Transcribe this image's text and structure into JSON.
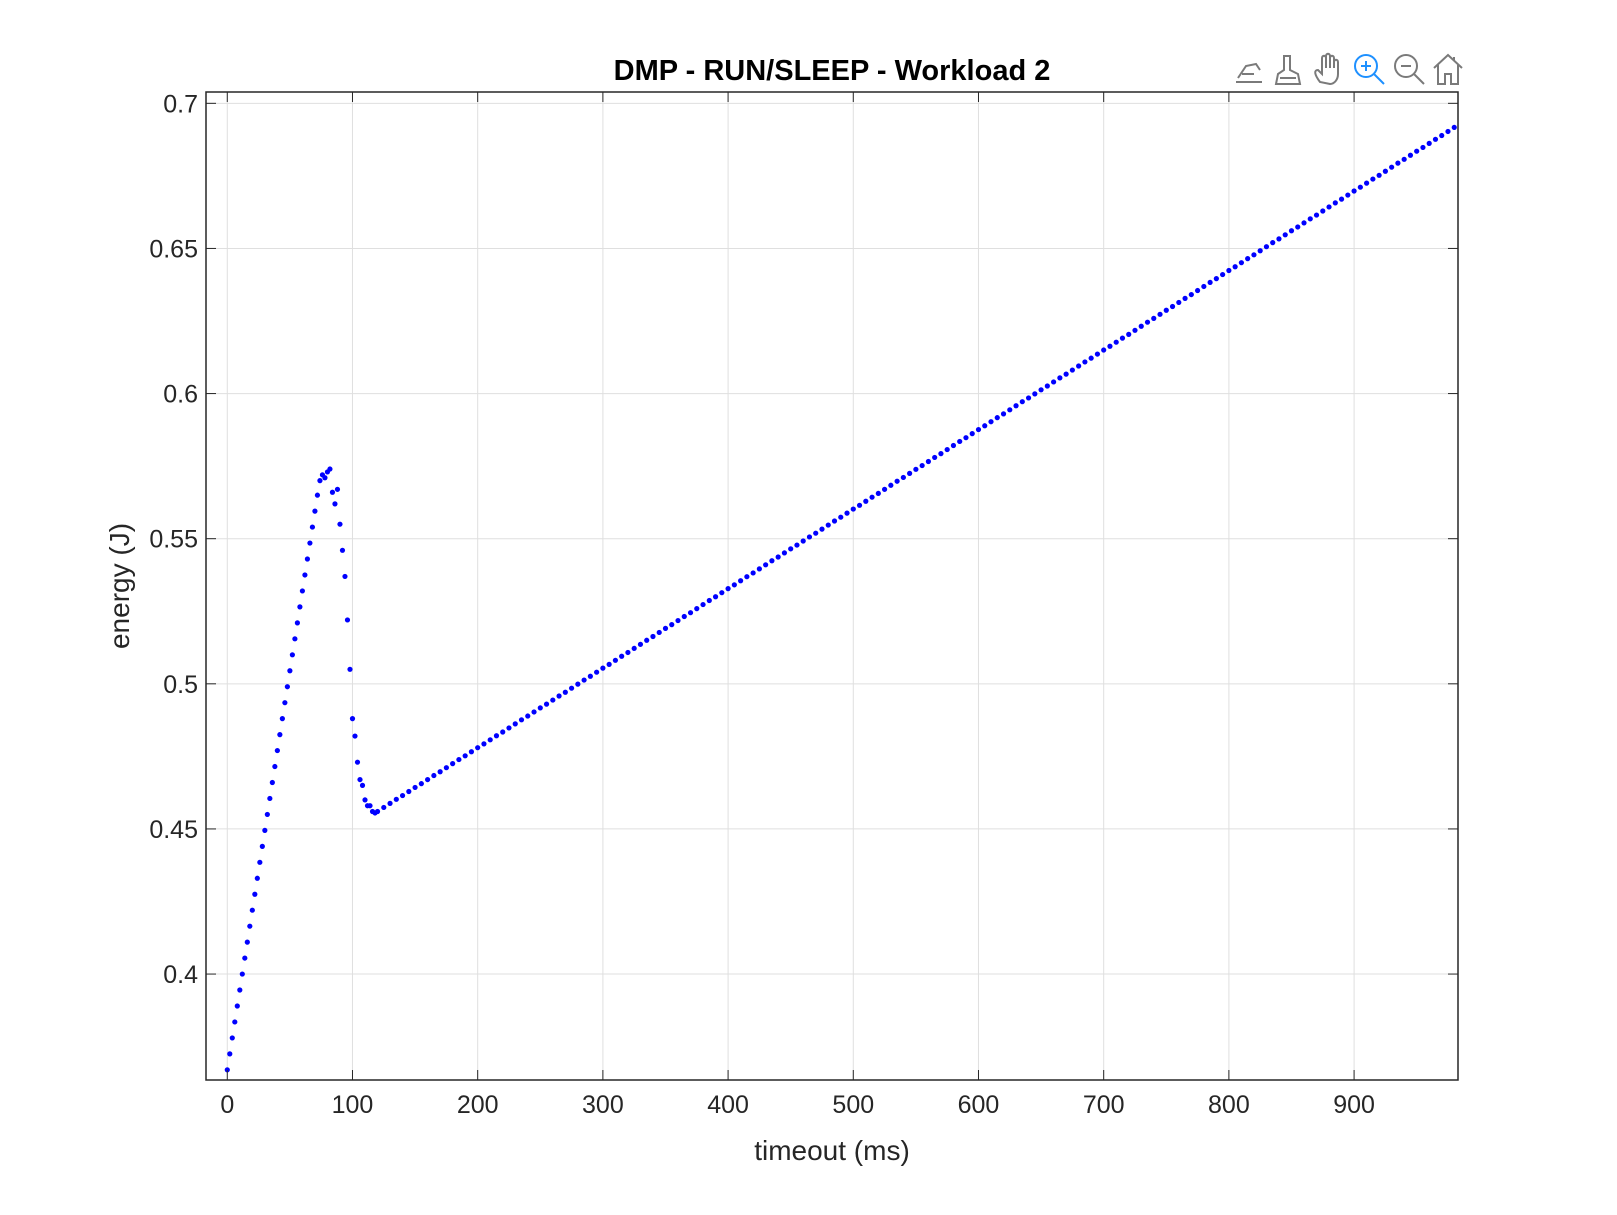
{
  "chart_data": {
    "type": "scatter",
    "title": "DMP - RUN/SLEEP - Workload 2",
    "x_label": "timeout (ms)",
    "y_label": "energy (J)",
    "xlim": [
      -17,
      983
    ],
    "ylim": [
      0.3635,
      0.7039
    ],
    "xticks": [
      0,
      100,
      200,
      300,
      400,
      500,
      600,
      700,
      800,
      900
    ],
    "yticks": [
      0.4,
      0.45,
      0.5,
      0.55,
      0.6,
      0.65,
      0.7
    ],
    "grid": true,
    "color": "#0000ff",
    "x": [
      0,
      2,
      4,
      6,
      8,
      10,
      12,
      14,
      16,
      18,
      20,
      22,
      24,
      26,
      28,
      30,
      32,
      34,
      36,
      38,
      40,
      42,
      44,
      46,
      48,
      50,
      52,
      54,
      56,
      58,
      60,
      62,
      64,
      66,
      68,
      70,
      72,
      74,
      76,
      78,
      80,
      82,
      84,
      86,
      88,
      90,
      92,
      94,
      96,
      98,
      100,
      102,
      104,
      106,
      108,
      110,
      112,
      114,
      116,
      118,
      120,
      125,
      130,
      135,
      140,
      145,
      150,
      155,
      160,
      165,
      170,
      175,
      180,
      185,
      190,
      195,
      200,
      205,
      210,
      215,
      220,
      225,
      230,
      235,
      240,
      245,
      250,
      255,
      260,
      265,
      270,
      275,
      280,
      285,
      290,
      295,
      300,
      305,
      310,
      315,
      320,
      325,
      330,
      335,
      340,
      345,
      350,
      355,
      360,
      365,
      370,
      375,
      380,
      385,
      390,
      395,
      400,
      405,
      410,
      415,
      420,
      425,
      430,
      435,
      440,
      445,
      450,
      455,
      460,
      465,
      470,
      475,
      480,
      485,
      490,
      495,
      500,
      505,
      510,
      515,
      520,
      525,
      530,
      535,
      540,
      545,
      550,
      555,
      560,
      565,
      570,
      575,
      580,
      585,
      590,
      595,
      600,
      605,
      610,
      615,
      620,
      625,
      630,
      635,
      640,
      645,
      650,
      655,
      660,
      665,
      670,
      675,
      680,
      685,
      690,
      695,
      700,
      705,
      710,
      715,
      720,
      725,
      730,
      735,
      740,
      745,
      750,
      755,
      760,
      765,
      770,
      775,
      780,
      785,
      790,
      795,
      800,
      805,
      810,
      815,
      820,
      825,
      830,
      835,
      840,
      845,
      850,
      855,
      860,
      865,
      870,
      875,
      880,
      885,
      890,
      895,
      900,
      905,
      910,
      915,
      920,
      925,
      930,
      935,
      940,
      945,
      950,
      955,
      960,
      965,
      970,
      975,
      980
    ],
    "values": [
      0.367,
      0.3725,
      0.378,
      0.3835,
      0.389,
      0.3945,
      0.4,
      0.4055,
      0.411,
      0.4165,
      0.422,
      0.4275,
      0.433,
      0.4385,
      0.444,
      0.4495,
      0.455,
      0.4605,
      0.466,
      0.4715,
      0.477,
      0.4825,
      0.488,
      0.4935,
      0.499,
      0.5045,
      0.51,
      0.5155,
      0.521,
      0.5265,
      0.532,
      0.5375,
      0.543,
      0.5485,
      0.554,
      0.5595,
      0.565,
      0.57,
      0.572,
      0.571,
      0.573,
      0.574,
      0.566,
      0.562,
      0.567,
      0.555,
      0.546,
      0.537,
      0.522,
      0.505,
      0.488,
      0.482,
      0.473,
      0.467,
      0.465,
      0.46,
      0.458,
      0.458,
      0.456,
      0.4555,
      0.456,
      0.4574,
      0.4588,
      0.4602,
      0.4615,
      0.4629,
      0.4643,
      0.4656,
      0.467,
      0.4684,
      0.4697,
      0.4711,
      0.4725,
      0.4739,
      0.4752,
      0.4766,
      0.478,
      0.4793,
      0.4807,
      0.4821,
      0.4834,
      0.4848,
      0.4862,
      0.4876,
      0.4889,
      0.4903,
      0.4917,
      0.493,
      0.4944,
      0.4958,
      0.4971,
      0.4985,
      0.4999,
      0.5013,
      0.5026,
      0.504,
      0.5054,
      0.5067,
      0.5081,
      0.5095,
      0.5108,
      0.5122,
      0.5136,
      0.515,
      0.5163,
      0.5177,
      0.5191,
      0.5204,
      0.5218,
      0.5232,
      0.5245,
      0.5259,
      0.5273,
      0.5287,
      0.53,
      0.5314,
      0.5328,
      0.5341,
      0.5355,
      0.5369,
      0.5382,
      0.5396,
      0.541,
      0.5424,
      0.5437,
      0.5451,
      0.5465,
      0.5478,
      0.5492,
      0.5506,
      0.5519,
      0.5533,
      0.5547,
      0.5561,
      0.5574,
      0.5588,
      0.5602,
      0.5615,
      0.5629,
      0.5643,
      0.5656,
      0.567,
      0.5684,
      0.5698,
      0.5711,
      0.5725,
      0.5739,
      0.5752,
      0.5766,
      0.578,
      0.5793,
      0.5807,
      0.5821,
      0.5835,
      0.5848,
      0.5862,
      0.5876,
      0.5889,
      0.5903,
      0.5917,
      0.593,
      0.5944,
      0.5958,
      0.5972,
      0.5985,
      0.5999,
      0.6013,
      0.6026,
      0.604,
      0.6054,
      0.6067,
      0.6081,
      0.6095,
      0.6109,
      0.6122,
      0.6136,
      0.615,
      0.6163,
      0.6177,
      0.6191,
      0.6204,
      0.6218,
      0.6232,
      0.6246,
      0.6259,
      0.6273,
      0.6287,
      0.63,
      0.6314,
      0.6328,
      0.6341,
      0.6355,
      0.6369,
      0.6383,
      0.6396,
      0.641,
      0.6424,
      0.6437,
      0.6451,
      0.6465,
      0.6478,
      0.6492,
      0.6506,
      0.652,
      0.6533,
      0.6547,
      0.6561,
      0.6574,
      0.6588,
      0.6602,
      0.6615,
      0.6629,
      0.6643,
      0.6657,
      0.667,
      0.6684,
      0.6698,
      0.6711,
      0.6725,
      0.6739,
      0.6752,
      0.6766,
      0.678,
      0.6794,
      0.6807,
      0.6821,
      0.6835,
      0.6848,
      0.6862,
      0.6876,
      0.6889,
      0.6903,
      0.6917
    ]
  }
}
